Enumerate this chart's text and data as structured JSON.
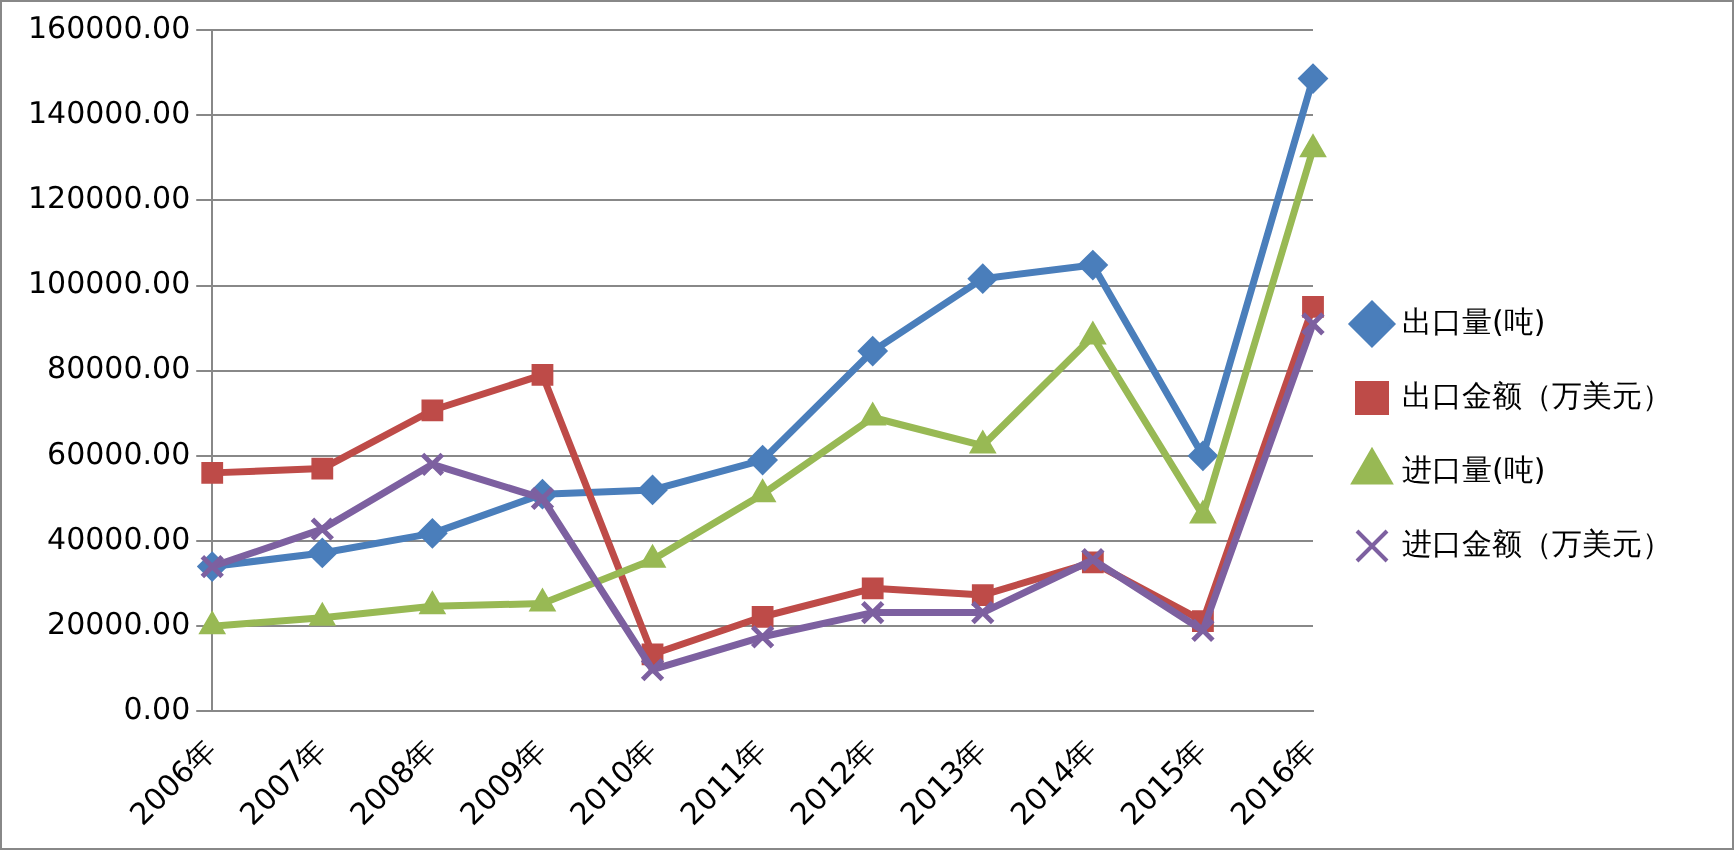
{
  "chart_data": {
    "type": "line",
    "categories": [
      "2006年",
      "2007年",
      "2008年",
      "2009年",
      "2010年",
      "2011年",
      "2012年",
      "2013年",
      "2014年",
      "2015年",
      "2016年"
    ],
    "series": [
      {
        "name": "出口量(吨)",
        "color": "#4a7ebb",
        "marker": "diamond",
        "values": [
          34000,
          37200,
          41800,
          51000,
          52000,
          59000,
          84600,
          101600,
          104800,
          60000,
          148600
        ]
      },
      {
        "name": "出口金额（万美元）",
        "color": "#be4b48",
        "marker": "square",
        "values": [
          56000,
          57000,
          70700,
          79000,
          13400,
          22200,
          28900,
          27300,
          35000,
          21200,
          95000
        ]
      },
      {
        "name": "进口量(吨)",
        "color": "#98b954",
        "marker": "triangle",
        "values": [
          20000,
          22000,
          24700,
          25300,
          35600,
          51000,
          69000,
          62400,
          88000,
          46000,
          132000
        ]
      },
      {
        "name": "进口金额（万美元）",
        "color": "#7d60a0",
        "marker": "cross",
        "values": [
          34000,
          42800,
          58000,
          50000,
          9800,
          17500,
          23200,
          23200,
          35600,
          19000,
          91000
        ]
      }
    ],
    "ylim": [
      0,
      160000
    ],
    "yticks": [
      {
        "value": 0,
        "label": "0.00"
      },
      {
        "value": 20000,
        "label": "20000.00"
      },
      {
        "value": 40000,
        "label": "40000.00"
      },
      {
        "value": 60000,
        "label": "60000.00"
      },
      {
        "value": 80000,
        "label": "80000.00"
      },
      {
        "value": 100000,
        "label": "100000.00"
      },
      {
        "value": 120000,
        "label": "120000.00"
      },
      {
        "value": 140000,
        "label": "140000.00"
      },
      {
        "value": 160000,
        "label": "160000.00"
      }
    ],
    "grid": "y",
    "legend": "right",
    "line_style": "solid"
  }
}
